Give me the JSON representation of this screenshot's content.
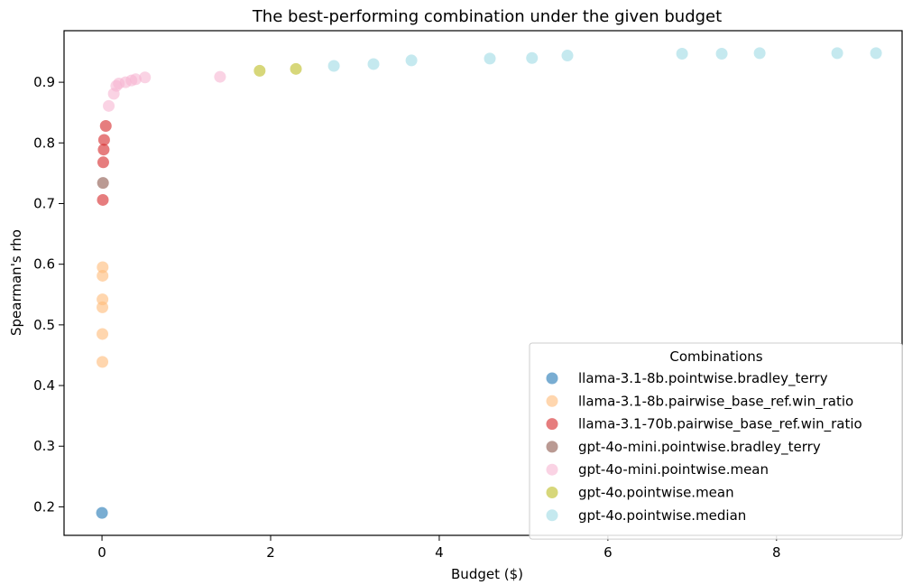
{
  "chart_data": {
    "type": "scatter",
    "title": "The best-performing combination under the given budget",
    "xlabel": "Budget ($)",
    "ylabel": "Spearman's rho",
    "xlim": [
      -0.45,
      9.5
    ],
    "ylim": [
      0.153,
      0.985
    ],
    "xticks": [
      0,
      2,
      4,
      6,
      8
    ],
    "yticks": [
      0.2,
      0.3,
      0.4,
      0.5,
      0.6,
      0.7,
      0.8,
      0.9
    ],
    "grid": false,
    "legend_title": "Combinations",
    "legend_position": "lower-right",
    "series": [
      {
        "name": "llama-3.1-8b.pointwise.bradley_terry",
        "color": "#1f77b4",
        "points": [
          [
            0.0,
            0.19
          ]
        ]
      },
      {
        "name": "llama-3.1-8b.pairwise_base_ref.win_ratio",
        "color": "#ffbb78",
        "points": [
          [
            0.005,
            0.439
          ],
          [
            0.005,
            0.485
          ],
          [
            0.005,
            0.529
          ],
          [
            0.006,
            0.542
          ],
          [
            0.007,
            0.581
          ],
          [
            0.008,
            0.595
          ]
        ]
      },
      {
        "name": "llama-3.1-70b.pairwise_base_ref.win_ratio",
        "color": "#d62728",
        "points": [
          [
            0.01,
            0.706
          ],
          [
            0.015,
            0.768
          ],
          [
            0.02,
            0.789
          ],
          [
            0.025,
            0.805
          ],
          [
            0.045,
            0.828
          ]
        ]
      },
      {
        "name": "gpt-4o-mini.pointwise.bradley_terry",
        "color": "#8c564b",
        "points": [
          [
            0.012,
            0.734
          ]
        ]
      },
      {
        "name": "gpt-4o-mini.pointwise.mean",
        "color": "#f7b6d2",
        "points": [
          [
            0.08,
            0.861
          ],
          [
            0.14,
            0.881
          ],
          [
            0.17,
            0.894
          ],
          [
            0.2,
            0.898
          ],
          [
            0.28,
            0.9
          ],
          [
            0.35,
            0.903
          ],
          [
            0.4,
            0.905
          ],
          [
            0.51,
            0.908
          ],
          [
            1.4,
            0.909
          ]
        ]
      },
      {
        "name": "gpt-4o.pointwise.mean",
        "color": "#bcbd22",
        "points": [
          [
            1.87,
            0.919
          ],
          [
            2.3,
            0.922
          ]
        ]
      },
      {
        "name": "gpt-4o.pointwise.median",
        "color": "#9edae5",
        "points": [
          [
            2.75,
            0.927
          ],
          [
            3.22,
            0.93
          ],
          [
            3.67,
            0.936
          ],
          [
            4.6,
            0.939
          ],
          [
            5.1,
            0.94
          ],
          [
            5.52,
            0.944
          ],
          [
            6.88,
            0.947
          ],
          [
            7.35,
            0.947
          ],
          [
            7.8,
            0.948
          ],
          [
            8.72,
            0.948
          ],
          [
            9.18,
            0.948
          ]
        ]
      }
    ]
  }
}
